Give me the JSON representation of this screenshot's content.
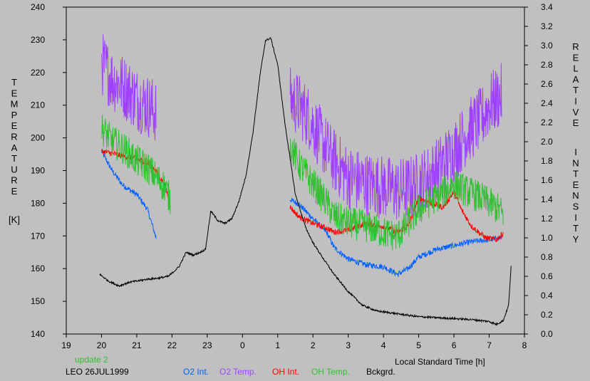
{
  "chart_data": {
    "type": "line",
    "title": "",
    "xlabel": "Local Standard Time [h]",
    "ylabel_left": {
      "letters": [
        "T",
        "E",
        "M",
        "P",
        "E",
        "R",
        "A",
        "T",
        "U",
        "R",
        "E"
      ],
      "unit": "[K]"
    },
    "ylabel_right": {
      "word1": [
        "R",
        "E",
        "L",
        "A",
        "T",
        "I",
        "V",
        "E"
      ],
      "word2": [
        "I",
        "N",
        "T",
        "E",
        "N",
        "S",
        "I",
        "T",
        "Y"
      ]
    },
    "x_ticks": [
      {
        "v": 19,
        "label": "19"
      },
      {
        "v": 20,
        "label": "20"
      },
      {
        "v": 21,
        "label": "21"
      },
      {
        "v": 22,
        "label": "22"
      },
      {
        "v": 23,
        "label": "23"
      },
      {
        "v": 24,
        "label": "0"
      },
      {
        "v": 25,
        "label": "1"
      },
      {
        "v": 26,
        "label": "2"
      },
      {
        "v": 27,
        "label": "3"
      },
      {
        "v": 28,
        "label": "4"
      },
      {
        "v": 29,
        "label": "5"
      },
      {
        "v": 30,
        "label": "6"
      },
      {
        "v": 31,
        "label": "7"
      },
      {
        "v": 32,
        "label": "8"
      }
    ],
    "xlim": [
      19,
      32
    ],
    "y_left_lim": [
      140,
      240
    ],
    "y_left_ticks": [
      140,
      150,
      160,
      170,
      180,
      190,
      200,
      210,
      220,
      230,
      240
    ],
    "y_right_lim": [
      0.0,
      3.4
    ],
    "y_right_ticks": [
      "0.0",
      "0.2",
      "0.4",
      "0.6",
      "0.8",
      "1.0",
      "1.2",
      "1.4",
      "1.6",
      "1.8",
      "2.0",
      "2.2",
      "2.4",
      "2.6",
      "2.8",
      "3.0",
      "3.2",
      "3.4"
    ],
    "grid": false,
    "series": [
      {
        "name": "O2 Int.",
        "color": "#0060ff",
        "axis": "right",
        "noise": 0.03,
        "segments": [
          {
            "x": [
              20.0,
              20.3,
              20.6,
              21.0,
              21.3,
              21.55
            ],
            "y": [
              1.9,
              1.7,
              1.55,
              1.45,
              1.3,
              1.0
            ]
          },
          {
            "x": [
              25.35,
              25.6,
              26.0,
              26.4,
              26.6,
              27.0,
              27.5,
              28.0,
              28.4,
              28.7,
              29.0,
              29.5,
              30.0,
              30.5,
              31.0,
              31.35
            ],
            "y": [
              1.4,
              1.35,
              1.2,
              1.05,
              0.9,
              0.78,
              0.72,
              0.7,
              0.62,
              0.68,
              0.8,
              0.88,
              0.92,
              0.96,
              0.98,
              1.0
            ]
          }
        ]
      },
      {
        "name": "O2 Temp.",
        "color": "#a040ff",
        "axis": "left",
        "noise": 10,
        "segments": [
          {
            "x": [
              20.0,
              20.3,
              20.6,
              21.0,
              21.3,
              21.55
            ],
            "y": [
              223,
              218,
              216,
              212,
              210,
              208
            ]
          },
          {
            "x": [
              25.35,
              25.6,
              25.9,
              26.2,
              26.6,
              27.0,
              27.5,
              28.0,
              28.4,
              28.8,
              29.0,
              29.5,
              30.0,
              30.4,
              30.8,
              31.0,
              31.35
            ],
            "y": [
              212,
              210,
              206,
              200,
              193,
              188,
              186,
              185,
              184,
              185,
              186,
              190,
              196,
              202,
              206,
              210,
              213
            ]
          }
        ]
      },
      {
        "name": "OH Int.",
        "color": "#ff0000",
        "axis": "right",
        "noise": 0.03,
        "segments": [
          {
            "x": [
              20.0,
              20.3,
              20.6,
              21.0,
              21.3,
              21.5,
              21.8,
              21.95
            ],
            "y": [
              1.9,
              1.88,
              1.85,
              1.82,
              1.78,
              1.72,
              1.55,
              1.35
            ]
          },
          {
            "x": [
              25.35,
              25.6,
              26.0,
              26.4,
              26.6,
              27.0,
              27.5,
              28.0,
              28.4,
              28.7,
              29.0,
              29.4,
              29.7,
              30.0,
              30.2,
              30.5,
              30.9,
              31.2,
              31.4
            ],
            "y": [
              1.32,
              1.22,
              1.15,
              1.1,
              1.06,
              1.08,
              1.15,
              1.12,
              1.06,
              1.12,
              1.42,
              1.35,
              1.32,
              1.48,
              1.3,
              1.12,
              1.0,
              0.98,
              1.05
            ]
          }
        ]
      },
      {
        "name": "OH Temp.",
        "color": "#30c030",
        "axis": "left",
        "noise": 5,
        "segments": [
          {
            "x": [
              20.0,
              20.3,
              20.6,
              21.0,
              21.3,
              21.55,
              21.8,
              21.95
            ],
            "y": [
              203,
              199,
              197,
              193,
              191,
              188,
              185,
              181
            ]
          },
          {
            "x": [
              25.35,
              25.6,
              26.0,
              26.4,
              26.6,
              27.0,
              27.5,
              28.0,
              28.4,
              28.7,
              29.0,
              29.5,
              29.8,
              30.0,
              30.3,
              30.7,
              31.0,
              31.3,
              31.4
            ],
            "y": [
              198,
              192,
              186,
              180,
              176,
              174,
              173,
              171,
              170,
              174,
              178,
              182,
              184,
              186,
              184,
              182,
              180,
              178,
              176
            ]
          }
        ]
      },
      {
        "name": "Bckgrd.",
        "color": "#000000",
        "axis": "right",
        "noise": 0.01,
        "segments": [
          {
            "x": [
              19.95,
              20.2,
              20.5,
              20.8,
              21.0,
              21.3,
              21.6,
              21.9,
              22.2,
              22.4,
              22.6,
              22.8,
              22.95,
              23.1,
              23.3,
              23.5,
              23.7,
              23.9,
              24.1,
              24.3,
              24.5,
              24.65,
              24.8,
              25.0,
              25.2,
              25.5,
              25.8,
              26.0,
              26.3,
              26.6,
              27.0,
              27.4,
              27.8,
              28.2,
              28.6,
              29.0,
              29.5,
              30.0,
              30.5,
              31.0,
              31.2,
              31.4,
              31.55,
              31.62
            ],
            "y": [
              0.62,
              0.55,
              0.5,
              0.54,
              0.55,
              0.57,
              0.58,
              0.6,
              0.7,
              0.85,
              0.82,
              0.85,
              0.88,
              1.28,
              1.18,
              1.15,
              1.2,
              1.38,
              1.65,
              2.1,
              2.7,
              3.05,
              3.08,
              2.8,
              2.2,
              1.45,
              1.1,
              0.95,
              0.78,
              0.62,
              0.44,
              0.3,
              0.24,
              0.22,
              0.2,
              0.18,
              0.17,
              0.16,
              0.15,
              0.13,
              0.1,
              0.14,
              0.3,
              0.7
            ]
          }
        ]
      }
    ]
  },
  "footer": {
    "update": "update 2",
    "site_date": "LEO 26JUL1999",
    "legend": [
      "O2 Int.",
      "O2 Temp.",
      "OH Int.",
      "OH Temp.",
      "Bckgrd."
    ]
  },
  "colors": {
    "background": "#c0c0c0",
    "update_text": "#30c030",
    "o2_int": "#0060ff",
    "o2_temp": "#a040ff",
    "oh_int": "#ff0000",
    "oh_temp": "#30c030",
    "bckgrd": "#000000"
  }
}
